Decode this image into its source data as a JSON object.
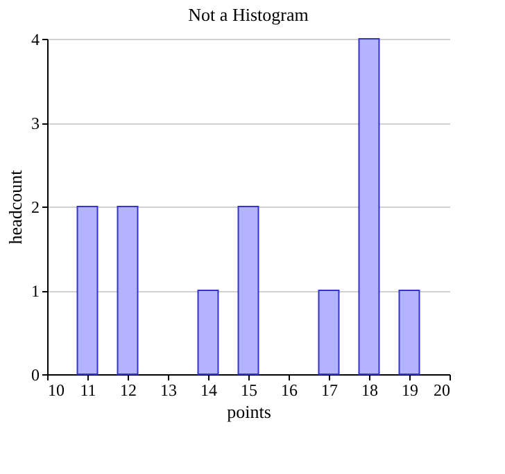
{
  "chart_data": {
    "type": "bar",
    "title": "Not a Histogram",
    "xlabel": "points",
    "ylabel": "headcount",
    "x": [
      11,
      12,
      14,
      15,
      17,
      18,
      19
    ],
    "series": [
      {
        "color": "#b3b3ff",
        "values": [
          2,
          2,
          1,
          2,
          1,
          4,
          1
        ]
      }
    ],
    "xlim": [
      10,
      20
    ],
    "xticks": [
      10,
      11,
      12,
      13,
      14,
      15,
      16,
      17,
      18,
      19,
      20
    ],
    "ylim": [
      0,
      4
    ],
    "yticks": [
      0,
      1,
      2,
      3,
      4
    ],
    "grid": "y"
  }
}
